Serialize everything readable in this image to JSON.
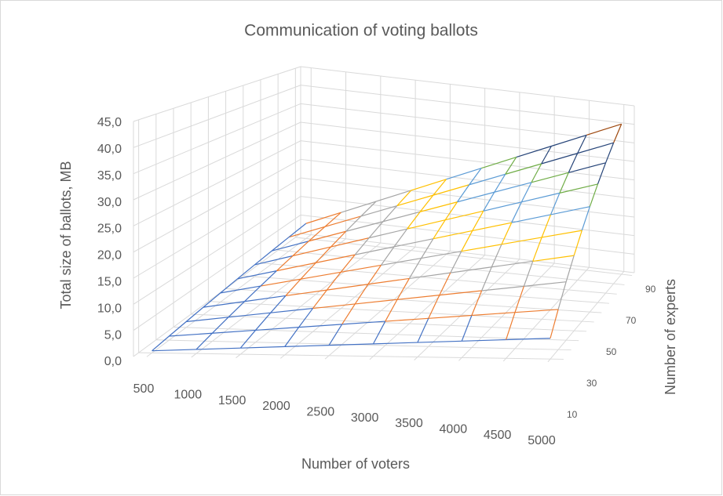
{
  "chart_data": {
    "type": "surface3d",
    "title": "Communication of voting ballots",
    "x_label": "Number of voters",
    "depth_label": "Number of experts",
    "y_label": "Total size of ballots, MB",
    "categories": [
      "500",
      "1000",
      "1500",
      "2000",
      "2500",
      "3000",
      "3500",
      "4000",
      "4500",
      "5000"
    ],
    "depth_categories": [
      "10",
      null,
      "30",
      null,
      "50",
      null,
      "70",
      null,
      "90",
      null
    ],
    "values": [
      [
        0.4,
        0.8,
        1.2,
        1.6,
        2.0,
        2.4,
        2.8,
        3.2,
        3.6,
        4.0
      ],
      [
        0.8,
        1.6,
        2.4,
        3.2,
        4.0,
        4.8,
        5.6,
        6.4,
        7.2,
        8.0
      ],
      [
        1.2,
        2.4,
        3.6,
        4.8,
        6.0,
        7.2,
        8.4,
        9.6,
        10.8,
        12.0
      ],
      [
        1.6,
        3.2,
        4.8,
        6.4,
        8.0,
        9.6,
        11.2,
        12.8,
        14.4,
        16.0
      ],
      [
        2.0,
        4.0,
        6.0,
        8.0,
        10.0,
        12.0,
        14.0,
        16.0,
        18.0,
        20.0
      ],
      [
        2.4,
        4.8,
        7.2,
        9.6,
        12.0,
        14.4,
        16.8,
        19.2,
        21.6,
        24.0
      ],
      [
        2.8,
        5.6,
        8.4,
        11.2,
        14.0,
        16.8,
        19.6,
        22.4,
        25.2,
        28.0
      ],
      [
        3.2,
        6.4,
        9.6,
        12.8,
        16.0,
        19.2,
        22.4,
        25.6,
        28.8,
        32.0
      ],
      [
        3.6,
        7.2,
        10.8,
        14.4,
        18.0,
        21.6,
        25.2,
        28.8,
        32.4,
        36.0
      ],
      [
        4.0,
        8.0,
        12.0,
        16.0,
        20.0,
        24.0,
        28.0,
        32.0,
        36.0,
        40.0
      ]
    ],
    "ylim": [
      0,
      45
    ],
    "yticks": [
      {
        "value": 0,
        "label": "0,0"
      },
      {
        "value": 5,
        "label": "5,0"
      },
      {
        "value": 10,
        "label": "10,0"
      },
      {
        "value": 15,
        "label": "15,0"
      },
      {
        "value": 20,
        "label": "20,0"
      },
      {
        "value": 25,
        "label": "25,0"
      },
      {
        "value": 30,
        "label": "30,0"
      },
      {
        "value": 35,
        "label": "35,0"
      },
      {
        "value": 40,
        "label": "40,0"
      },
      {
        "value": 45,
        "label": "45,0"
      }
    ],
    "band_colors": [
      "#4472c4",
      "#ed7d31",
      "#a5a5a5",
      "#ffc000",
      "#5b9bd5",
      "#70ad47",
      "#264478",
      "#9e480e",
      "#636363"
    ],
    "grid": true
  }
}
